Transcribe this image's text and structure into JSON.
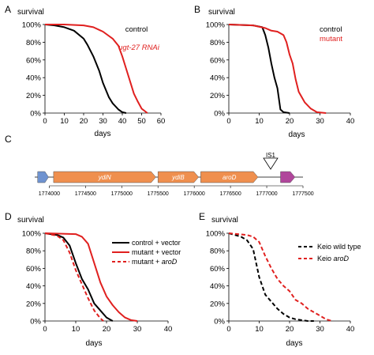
{
  "chart_data": [
    {
      "panel": "A",
      "type": "line",
      "ylabel": "survival",
      "xlabel": "days",
      "xlim": [
        0,
        60
      ],
      "ylim": [
        0,
        100
      ],
      "xticks": [
        "0",
        "10",
        "20",
        "30",
        "40",
        "50",
        "60"
      ],
      "yticks": [
        "0%",
        "20%",
        "40%",
        "60%",
        "80%",
        "100%"
      ],
      "legend_position": "top-right",
      "series": [
        {
          "name": "control",
          "color": "#000000",
          "style": "solid",
          "x": [
            0,
            5,
            10,
            15,
            20,
            22,
            25,
            28,
            30,
            33,
            35,
            38,
            40,
            42
          ],
          "y": [
            100,
            99,
            97,
            93,
            84,
            77,
            64,
            48,
            34,
            18,
            11,
            4,
            1,
            0
          ]
        },
        {
          "name": "ugt-27 RNAi",
          "color": "#e0201f",
          "style": "solid",
          "x": [
            0,
            10,
            20,
            25,
            30,
            35,
            38,
            40,
            42,
            44,
            46,
            48,
            50,
            53
          ],
          "y": [
            100,
            100,
            99,
            97,
            92,
            84,
            76,
            64,
            50,
            36,
            22,
            13,
            5,
            0
          ]
        }
      ]
    },
    {
      "panel": "B",
      "type": "line",
      "ylabel": "survival",
      "xlabel": "days",
      "xlim": [
        0,
        40
      ],
      "ylim": [
        0,
        100
      ],
      "xticks": [
        "0",
        "10",
        "20",
        "30",
        "40"
      ],
      "yticks": [
        "0%",
        "20%",
        "40%",
        "60%",
        "80%",
        "100%"
      ],
      "legend_position": "top-right",
      "series": [
        {
          "name": "control",
          "color": "#000000",
          "style": "solid",
          "x": [
            0,
            8,
            11,
            12,
            13,
            14,
            15,
            16,
            17,
            18,
            20
          ],
          "y": [
            100,
            99,
            97,
            88,
            74,
            56,
            40,
            28,
            4,
            1,
            0
          ]
        },
        {
          "name": "mutant",
          "color": "#e0201f",
          "style": "solid",
          "x": [
            0,
            8,
            12,
            14,
            16,
            18,
            19,
            20,
            21,
            22,
            23,
            25,
            27,
            29,
            32
          ],
          "y": [
            100,
            99,
            96,
            93,
            92,
            88,
            80,
            66,
            56,
            38,
            24,
            12,
            5,
            1,
            0
          ]
        }
      ]
    },
    {
      "panel": "D",
      "type": "line",
      "ylabel": "survival",
      "xlabel": "days",
      "xlim": [
        0,
        40
      ],
      "ylim": [
        0,
        100
      ],
      "xticks": [
        "0",
        "10",
        "20",
        "30",
        "40"
      ],
      "yticks": [
        "0%",
        "20%",
        "40%",
        "60%",
        "80%",
        "100%"
      ],
      "legend_position": "top-right",
      "series": [
        {
          "name": "control + vector",
          "color": "#000000",
          "style": "solid",
          "x": [
            0,
            4,
            6,
            8,
            10,
            12,
            14,
            16,
            18,
            20,
            22
          ],
          "y": [
            100,
            98,
            95,
            86,
            66,
            48,
            36,
            20,
            12,
            4,
            0
          ]
        },
        {
          "name": "mutant + vector",
          "color": "#e0201f",
          "style": "solid",
          "x": [
            0,
            10,
            12,
            14,
            16,
            18,
            20,
            22,
            24,
            26,
            28,
            30
          ],
          "y": [
            100,
            99,
            96,
            88,
            66,
            44,
            28,
            18,
            10,
            4,
            1,
            0
          ]
        },
        {
          "name": "mutant + aroD",
          "color": "#e0201f",
          "style": "dashed",
          "x": [
            0,
            4,
            6,
            8,
            10,
            12,
            14,
            16,
            18,
            19
          ],
          "y": [
            100,
            97,
            92,
            78,
            58,
            42,
            26,
            12,
            3,
            0
          ]
        }
      ]
    },
    {
      "panel": "E",
      "type": "line",
      "ylabel": "survival",
      "xlabel": "days",
      "xlim": [
        0,
        40
      ],
      "ylim": [
        0,
        100
      ],
      "xticks": [
        "0",
        "10",
        "20",
        "30",
        "40"
      ],
      "yticks": [
        "0%",
        "20%",
        "40%",
        "60%",
        "80%",
        "100%"
      ],
      "legend_position": "right",
      "series": [
        {
          "name": "Keio wild type",
          "color": "#000000",
          "style": "dashed",
          "x": [
            0,
            4,
            6,
            8,
            10,
            12,
            14,
            16,
            18,
            20,
            22,
            24,
            26,
            28
          ],
          "y": [
            100,
            96,
            92,
            82,
            50,
            30,
            22,
            14,
            8,
            4,
            2,
            1,
            0,
            0
          ]
        },
        {
          "name": "Keio aroD",
          "color": "#e0201f",
          "style": "dashed",
          "x": [
            0,
            6,
            8,
            10,
            12,
            14,
            16,
            18,
            20,
            22,
            24,
            26,
            28,
            30,
            32,
            34
          ],
          "y": [
            100,
            98,
            96,
            90,
            74,
            60,
            48,
            40,
            34,
            24,
            20,
            14,
            10,
            6,
            2,
            0
          ]
        }
      ]
    }
  ],
  "panel_c": {
    "panel": "C",
    "genes": [
      {
        "name": "",
        "start": 1773840,
        "end": 1773990,
        "color": "#6f93d0"
      },
      {
        "name": "ydiN",
        "start": 1774060,
        "end": 1775470,
        "color": "#ef8f4e"
      },
      {
        "name": "ydiB",
        "start": 1775500,
        "end": 1776060,
        "color": "#ef8f4e"
      },
      {
        "name": "aroD",
        "start": 1776090,
        "end": 1776880,
        "color": "#ef8f4e"
      },
      {
        "name": "",
        "start": 1777190,
        "end": 1777390,
        "color": "#b0469b"
      }
    ],
    "insertion_label": "IS1",
    "insertion_pos": 1776980,
    "axis_min": 1773800,
    "axis_max": 1777500,
    "ticks": [
      "1774000",
      "1774500",
      "1775000",
      "1775500",
      "1776000",
      "1776500",
      "1777000",
      "1777500"
    ]
  }
}
